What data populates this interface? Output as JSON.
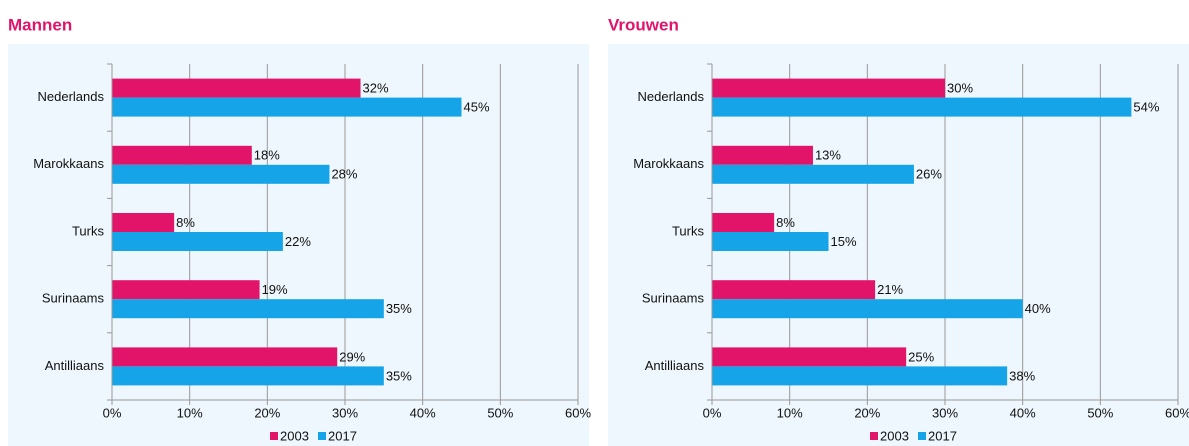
{
  "chart_data": [
    {
      "type": "bar",
      "orientation": "horizontal",
      "title": "Mannen",
      "categories": [
        "Nederlands",
        "Marokkaans",
        "Turks",
        "Surinaams",
        "Antilliaans"
      ],
      "series": [
        {
          "name": "2003",
          "color": "#e2146a",
          "values": [
            32,
            18,
            8,
            19,
            29
          ],
          "value_labels": [
            "32%",
            "18%",
            "8%",
            "19%",
            "29%"
          ]
        },
        {
          "name": "2017",
          "color": "#16a4e8",
          "values": [
            45,
            28,
            22,
            35,
            35
          ],
          "value_labels": [
            "45%",
            "28%",
            "22%",
            "35%",
            "35%"
          ]
        }
      ],
      "xlim": [
        0,
        60
      ],
      "xticks": [
        {
          "value": 0,
          "label": "0%"
        },
        {
          "value": 10,
          "label": "10%"
        },
        {
          "value": 20,
          "label": "20%"
        },
        {
          "value": 30,
          "label": "30%"
        },
        {
          "value": 40,
          "label": "40%"
        },
        {
          "value": 50,
          "label": "50%"
        },
        {
          "value": 60,
          "label": "60%"
        }
      ],
      "grid": true,
      "legend": "bottom"
    },
    {
      "type": "bar",
      "orientation": "horizontal",
      "title": "Vrouwen",
      "categories": [
        "Nederlands",
        "Marokkaans",
        "Turks",
        "Surinaams",
        "Antilliaans"
      ],
      "series": [
        {
          "name": "2003",
          "color": "#e2146a",
          "values": [
            30,
            13,
            8,
            21,
            25
          ],
          "value_labels": [
            "30%",
            "13%",
            "8%",
            "21%",
            "25%"
          ]
        },
        {
          "name": "2017",
          "color": "#16a4e8",
          "values": [
            54,
            26,
            15,
            40,
            38
          ],
          "value_labels": [
            "54%",
            "26%",
            "15%",
            "40%",
            "38%"
          ]
        }
      ],
      "xlim": [
        0,
        60
      ],
      "xticks": [
        {
          "value": 0,
          "label": "0%"
        },
        {
          "value": 10,
          "label": "10%"
        },
        {
          "value": 20,
          "label": "20%"
        },
        {
          "value": 30,
          "label": "30%"
        },
        {
          "value": 40,
          "label": "40%"
        },
        {
          "value": 50,
          "label": "50%"
        },
        {
          "value": 60,
          "label": "60%"
        }
      ],
      "grid": true,
      "legend": "bottom"
    }
  ]
}
